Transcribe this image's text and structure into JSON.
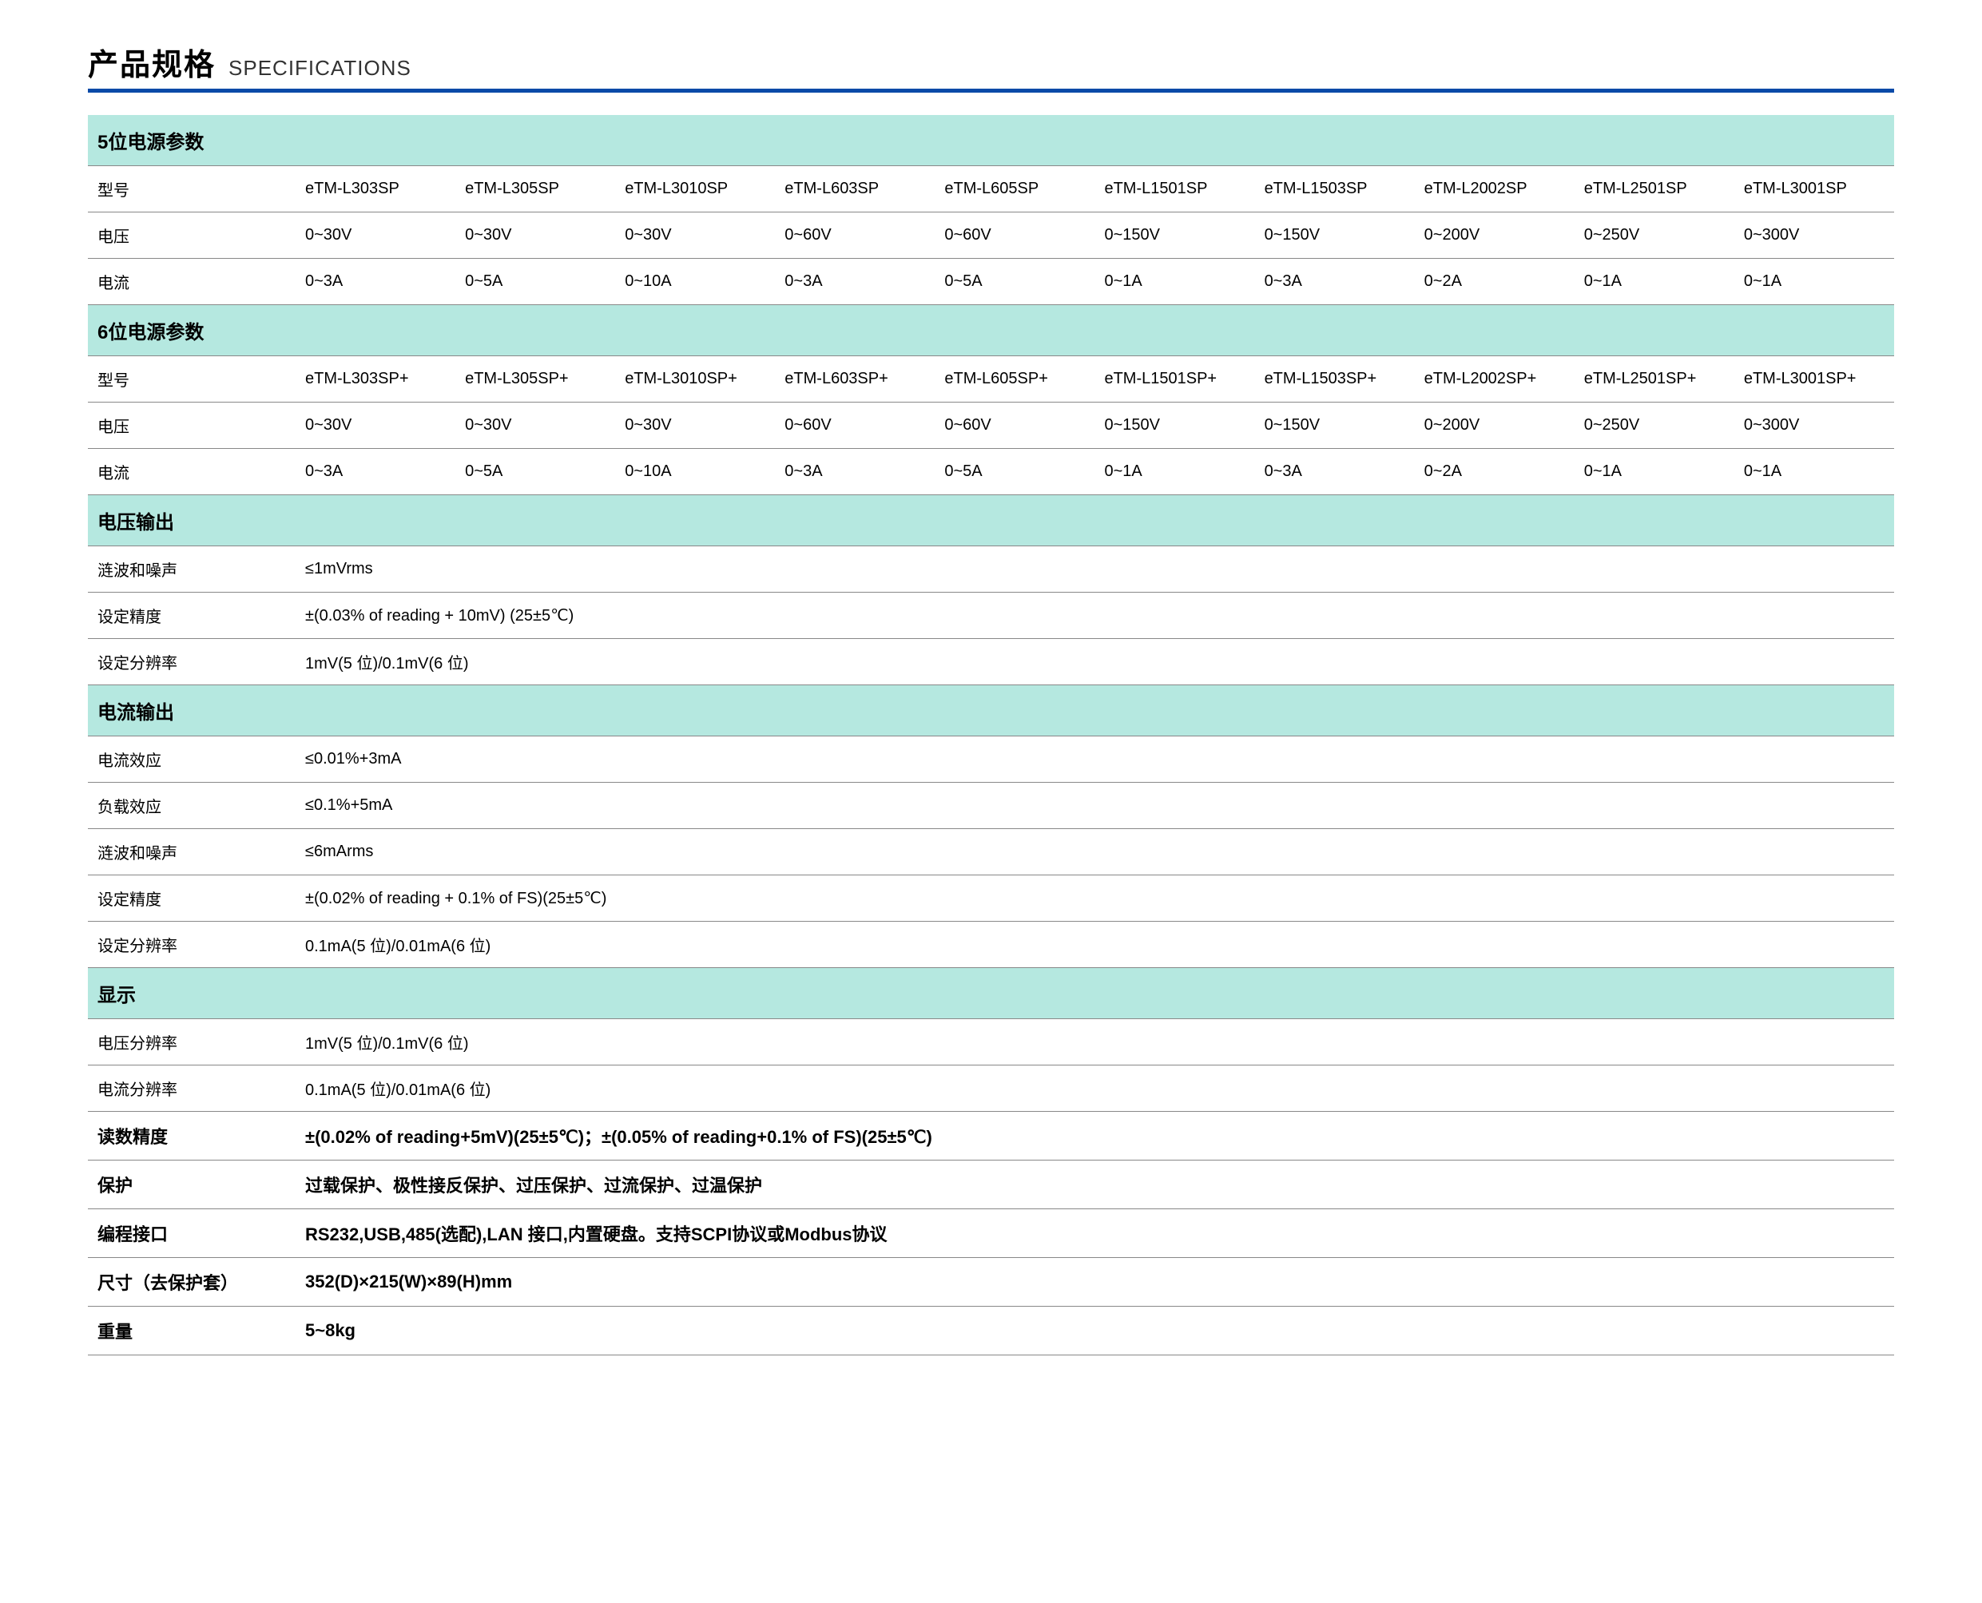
{
  "title_cn": "产品规格",
  "title_en": "SPECIFICATIONS",
  "colors": {
    "teal_bg": "#b5e8e0",
    "border": "#888888",
    "accent": "#0a4aa8"
  },
  "section5": {
    "header": "5位电源参数",
    "label_model": "型号",
    "label_voltage": "电压",
    "label_current": "电流",
    "models": [
      "eTM-L303SP",
      "eTM-L305SP",
      "eTM-L3010SP",
      "eTM-L603SP",
      "eTM-L605SP",
      "eTM-L1501SP",
      "eTM-L1503SP",
      "eTM-L2002SP",
      "eTM-L2501SP",
      "eTM-L3001SP"
    ],
    "voltages": [
      "0~30V",
      "0~30V",
      "0~30V",
      "0~60V",
      "0~60V",
      "0~150V",
      "0~150V",
      "0~200V",
      "0~250V",
      "0~300V"
    ],
    "currents": [
      "0~3A",
      "0~5A",
      "0~10A",
      "0~3A",
      "0~5A",
      "0~1A",
      "0~3A",
      "0~2A",
      "0~1A",
      "0~1A"
    ]
  },
  "section6": {
    "header": "6位电源参数",
    "label_model": "型号",
    "label_voltage": "电压",
    "label_current": "电流",
    "models": [
      "eTM-L303SP+",
      "eTM-L305SP+",
      "eTM-L3010SP+",
      "eTM-L603SP+",
      "eTM-L605SP+",
      "eTM-L1501SP+",
      "eTM-L1503SP+",
      "eTM-L2002SP+",
      "eTM-L2501SP+",
      "eTM-L3001SP+"
    ],
    "voltages": [
      "0~30V",
      "0~30V",
      "0~30V",
      "0~60V",
      "0~60V",
      "0~150V",
      "0~150V",
      "0~200V",
      "0~250V",
      "0~300V"
    ],
    "currents": [
      "0~3A",
      "0~5A",
      "0~10A",
      "0~3A",
      "0~5A",
      "0~1A",
      "0~3A",
      "0~2A",
      "0~1A",
      "0~1A"
    ]
  },
  "volt_out": {
    "header": "电压输出",
    "rows": [
      {
        "label": "涟波和噪声",
        "value": "≤1mVrms"
      },
      {
        "label": "设定精度",
        "value": "±(0.03% of reading + 10mV) (25±5℃)"
      },
      {
        "label": "设定分辨率",
        "value": "1mV(5 位)/0.1mV(6 位)"
      }
    ]
  },
  "curr_out": {
    "header": "电流输出",
    "rows": [
      {
        "label": "电流效应",
        "value": "≤0.01%+3mA"
      },
      {
        "label": "负载效应",
        "value": "≤0.1%+5mA"
      },
      {
        "label": "涟波和噪声",
        "value": "≤6mArms"
      },
      {
        "label": "设定精度",
        "value": "±(0.02% of reading + 0.1%  of FS)(25±5℃)"
      },
      {
        "label": "设定分辨率",
        "value": "0.1mA(5 位)/0.01mA(6 位)"
      }
    ]
  },
  "display": {
    "header": "显示",
    "rows": [
      {
        "label": "电压分辨率",
        "value": "1mV(5 位)/0.1mV(6 位)"
      },
      {
        "label": "电流分辨率",
        "value": "0.1mA(5 位)/0.01mA(6 位)"
      }
    ]
  },
  "bold_rows": [
    {
      "label": "读数精度",
      "value": "±(0.02% of reading+5mV)(25±5℃)；±(0.05% of reading+0.1% of FS)(25±5℃)"
    },
    {
      "label": "保护",
      "value": "过载保护、极性接反保护、过压保护、过流保护、过温保护"
    },
    {
      "label": "编程接口",
      "value": "RS232,USB,485(选配),LAN 接口,内置硬盘。支持SCPI协议或Modbus协议"
    },
    {
      "label": "尺寸（去保护套）",
      "value": "352(D)×215(W)×89(H)mm"
    },
    {
      "label": "重量",
      "value": "5~8kg"
    }
  ]
}
